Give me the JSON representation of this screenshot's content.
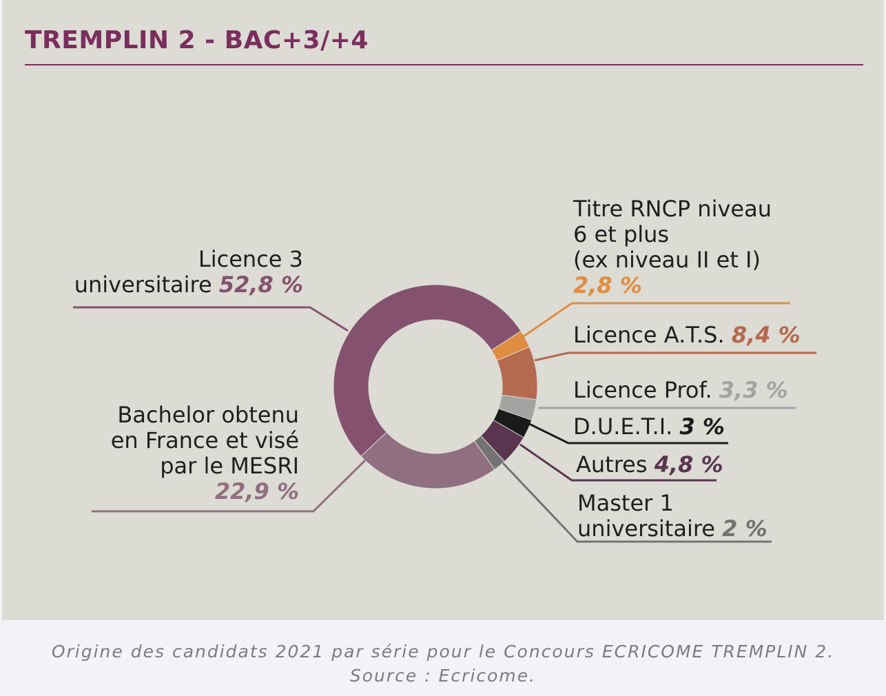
{
  "chart_data": {
    "type": "pie",
    "title": "TREMPLIN 2 - BAC+3/+4",
    "donut": true,
    "slices": [
      {
        "label": "Titre RNCP niveau 6 et plus (ex niveau II et I)",
        "value": 2.8,
        "value_label": "2,8 %",
        "color": "#e08d41"
      },
      {
        "label": "Licence A.T.S.",
        "value": 8.4,
        "value_label": "8,4 %",
        "color": "#b5694f"
      },
      {
        "label": "Licence Prof.",
        "value": 3.3,
        "value_label": "3,3 %",
        "color": "#a3a3a1"
      },
      {
        "label": "D.U.E.T.I.",
        "value": 3,
        "value_label": "3 %",
        "color": "#1b1b1b"
      },
      {
        "label": "Autres",
        "value": 4.8,
        "value_label": "4,8 %",
        "color": "#5a3550"
      },
      {
        "label": "Master 1 universitaire",
        "value": 2,
        "value_label": "2 %",
        "color": "#737373"
      },
      {
        "label": "Bachelor obtenu en France et visé par le MESRI",
        "value": 22.9,
        "value_label": "22,9 %",
        "color": "#8f6f80"
      },
      {
        "label": "Licence 3 universitaire",
        "value": 52.8,
        "value_label": "52,8 %",
        "color": "#84526f"
      }
    ]
  },
  "labels": {
    "titre": [
      "Titre RNCP niveau",
      "6 et plus",
      "(ex niveau II et I)"
    ],
    "ats": "Licence A.T.S.",
    "lp": "Licence Prof.",
    "dueti": "D.U.E.T.I.",
    "autres": "Autres",
    "master": [
      "Master 1",
      "universitaire"
    ],
    "bachelor": [
      "Bachelor obtenu",
      "en France et visé",
      "par le MESRI"
    ],
    "licence": [
      "Licence 3",
      "universitaire"
    ]
  },
  "caption": [
    "Origine des candidats 2021 par série pour le Concours ECRICOME TREMPLIN 2.",
    "Source  : Ecricome."
  ]
}
